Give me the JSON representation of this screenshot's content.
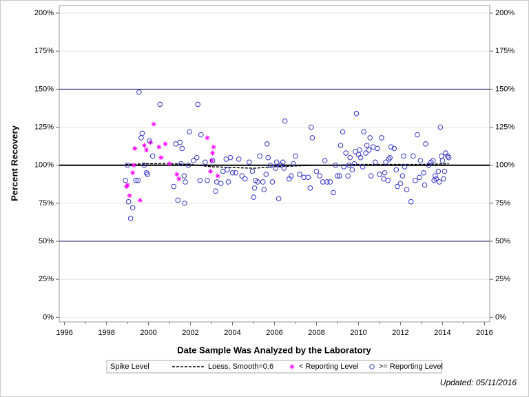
{
  "chart_data": {
    "type": "scatter",
    "x_label": "Date Sample Was Analyzed by the Laboratory",
    "y_label": "Percent Recovery",
    "footnote": "Updated: 05/11/2016",
    "legend_title": "Spike Level",
    "grid": true,
    "xlim": [
      1995.75,
      2016.25
    ],
    "xticks": [
      1996,
      1998,
      2000,
      2002,
      2004,
      2006,
      2008,
      2010,
      2012,
      2014,
      2016
    ],
    "ylim": [
      -3,
      205
    ],
    "yticks": [
      {
        "value": 0,
        "label": "0%"
      },
      {
        "value": 25,
        "label": "25%"
      },
      {
        "value": 50,
        "label": "50%"
      },
      {
        "value": 75,
        "label": "75%"
      },
      {
        "value": 100,
        "label": "100%"
      },
      {
        "value": 125,
        "label": "125%"
      },
      {
        "value": 150,
        "label": "150%"
      },
      {
        "value": 175,
        "label": "175%"
      },
      {
        "value": 200,
        "label": "200%"
      }
    ],
    "y2lim": [
      -3,
      205
    ],
    "y2ticks": [
      {
        "value": 0,
        "label": "0%"
      },
      {
        "value": 25,
        "label": "25%"
      },
      {
        "value": 50,
        "label": "50%"
      },
      {
        "value": 75,
        "label": "75%"
      },
      {
        "value": 100,
        "label": "100%"
      },
      {
        "value": 125,
        "label": "125%"
      },
      {
        "value": 150,
        "label": "150%"
      },
      {
        "value": 175,
        "label": "175%"
      },
      {
        "value": 200,
        "label": "200%"
      }
    ],
    "reference_lines": [
      50,
      100,
      150
    ],
    "series": [
      {
        "name": "Loess, Smooth=0.6",
        "color": "#000000",
        "marker": "dashed-line",
        "x": [
          1998.9,
          2000,
          2001,
          2002,
          2003,
          2004,
          2005,
          2006,
          2007,
          2008,
          2009,
          2010,
          2011,
          2012,
          2013,
          2014.3
        ],
        "values": [
          100.5,
          101,
          101,
          100.5,
          99,
          98.5,
          98,
          99,
          99.5,
          100,
          100,
          100.5,
          100.5,
          100.5,
          100.5,
          101
        ]
      },
      {
        "name": "< Reporting Level",
        "color": "#ff00ff",
        "marker": "star",
        "x": [
          1998.95,
          1999.0,
          1999.1,
          1999.25,
          1999.3,
          1999.35,
          1999.6,
          1999.8,
          1999.9,
          2000.1,
          2000.25,
          2000.5,
          2000.6,
          2000.8,
          2001.0,
          2001.35,
          2001.45,
          2002.8,
          2002.95,
          2003.0,
          2003.05,
          2003.1,
          2003.3
        ],
        "values": [
          86,
          87,
          80,
          95,
          100,
          111,
          77,
          113,
          110,
          115,
          127,
          112,
          105,
          114,
          101,
          94,
          91,
          118,
          96,
          103,
          108,
          112,
          93
        ]
      },
      {
        "name": ">= Reporting Level",
        "color": "#3333cc",
        "marker": "circle",
        "x": [
          1998.9,
          1999.0,
          1999.05,
          1999.15,
          1999.25,
          1999.4,
          1999.5,
          1999.55,
          1999.65,
          1999.7,
          1999.8,
          1999.9,
          1999.95,
          2000.05,
          2000.2,
          2000.55,
          2001.2,
          2001.3,
          2001.4,
          2001.5,
          2001.55,
          2001.6,
          2001.7,
          2001.75,
          2001.72,
          2001.9,
          2001.95,
          2002.15,
          2002.3,
          2002.35,
          2002.45,
          2002.5,
          2002.7,
          2002.8,
          2003.05,
          2003.2,
          2003.25,
          2003.45,
          2003.55,
          2003.7,
          2003.75,
          2003.8,
          2003.9,
          2004.0,
          2004.15,
          2004.3,
          2004.45,
          2004.6,
          2004.8,
          2004.95,
          2005.0,
          2005.05,
          2005.1,
          2005.2,
          2005.3,
          2005.45,
          2005.5,
          2005.6,
          2005.65,
          2005.7,
          2005.8,
          2005.9,
          2006.05,
          2006.1,
          2006.2,
          2006.3,
          2006.4,
          2006.45,
          2006.5,
          2006.7,
          2006.8,
          2006.9,
          2007.0,
          2007.2,
          2007.4,
          2007.6,
          2007.7,
          2007.75,
          2007.8,
          2008.0,
          2008.15,
          2008.3,
          2008.4,
          2008.5,
          2008.65,
          2008.8,
          2008.9,
          2009.0,
          2009.1,
          2009.15,
          2009.25,
          2009.3,
          2009.4,
          2009.5,
          2009.55,
          2009.6,
          2009.7,
          2009.8,
          2009.85,
          2009.9,
          2010.0,
          2010.05,
          2010.1,
          2010.2,
          2010.25,
          2010.35,
          2010.4,
          2010.5,
          2010.55,
          2010.6,
          2010.7,
          2010.8,
          2010.9,
          2011.0,
          2011.1,
          2011.2,
          2011.25,
          2011.3,
          2011.4,
          2011.45,
          2011.5,
          2011.55,
          2011.7,
          2011.8,
          2011.85,
          2012.0,
          2012.1,
          2012.15,
          2012.2,
          2012.3,
          2012.5,
          2012.6,
          2012.7,
          2012.8,
          2012.9,
          2012.95,
          2013.1,
          2013.15,
          2013.2,
          2013.35,
          2013.45,
          2013.55,
          2013.6,
          2013.65,
          2013.7,
          2013.8,
          2013.85,
          2013.9,
          2013.95,
          2014.0,
          2014.05,
          2014.1,
          2014.15,
          2014.25,
          2014.3
        ],
        "values": [
          90,
          100,
          76,
          65,
          72,
          90,
          90,
          148,
          118,
          121,
          100,
          95,
          94,
          116,
          106,
          140,
          86,
          114,
          77,
          115,
          101,
          111,
          93,
          89,
          75,
          100,
          122,
          103,
          105,
          140,
          90,
          120,
          102,
          90,
          103,
          83,
          89,
          88,
          96,
          104,
          97,
          89,
          105,
          95,
          95,
          104,
          93,
          91,
          102,
          96,
          79,
          85,
          90,
          89,
          106,
          89,
          84,
          94,
          114,
          105,
          100,
          89,
          98,
          102,
          78,
          100,
          102,
          98,
          129,
          91,
          93,
          101,
          106,
          94,
          92,
          92,
          85,
          125,
          118,
          96,
          93,
          89,
          103,
          89,
          89,
          82,
          100,
          93,
          93,
          113,
          122,
          99,
          108,
          93,
          100,
          105,
          97,
          101,
          109,
          134,
          107,
          110,
          105,
          99,
          122,
          108,
          113,
          110,
          118,
          93,
          112,
          102,
          111,
          94,
          118,
          91,
          95,
          102,
          90,
          104,
          105,
          112,
          111,
          97,
          86,
          88,
          93,
          106,
          99,
          84,
          76,
          106,
          90,
          120,
          92,
          103,
          95,
          87,
          114,
          100,
          102,
          103,
          90,
          93,
          91,
          96,
          89,
          125,
          106,
          103,
          91,
          96,
          108,
          106,
          105
        ]
      }
    ]
  }
}
